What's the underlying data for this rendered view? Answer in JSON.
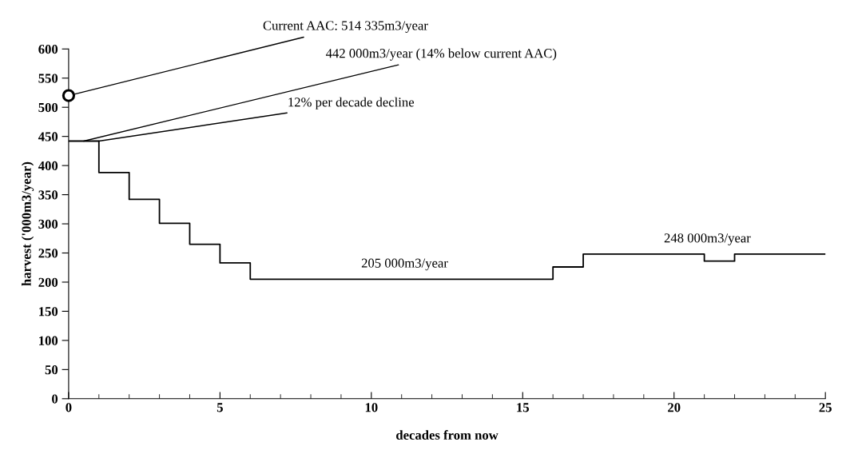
{
  "chart_data": {
    "type": "step",
    "xlabel": "decades from now",
    "ylabel": "harvest ('000m3/year)",
    "xlim": [
      0,
      25
    ],
    "xticks": [
      0,
      5,
      10,
      15,
      20,
      25
    ],
    "ylim": [
      0,
      600
    ],
    "yticks": [
      0,
      50,
      100,
      150,
      200,
      250,
      300,
      350,
      400,
      450,
      500,
      550,
      600
    ],
    "grid": false,
    "legend": false,
    "series": [
      {
        "color": "#000000",
        "marker": "none",
        "line_style": "solid",
        "x": [
          0,
          1,
          2,
          3,
          4,
          5,
          6,
          16,
          17,
          21,
          22,
          25
        ],
        "values": [
          442,
          388,
          342,
          301,
          265,
          233,
          205,
          226,
          248,
          236,
          248,
          248
        ]
      },
      {
        "type": "scatter",
        "color": "#000000",
        "marker": "circle",
        "x": [
          0
        ],
        "values": [
          520
        ]
      }
    ],
    "annotations": [
      {
        "text": "Current AAC: 514 335m3/year",
        "x": 0,
        "y": 520
      },
      {
        "text": "442 000m3/year (14% below current AAC)",
        "x": 0.5,
        "y": 442
      },
      {
        "text": "12% per decade decline",
        "x": 1,
        "y": 442
      },
      {
        "text": "205 000m3/year",
        "x": 11.1,
        "y": 205
      },
      {
        "text": "248 000m3/year",
        "x": 21.1,
        "y": 248
      }
    ]
  }
}
